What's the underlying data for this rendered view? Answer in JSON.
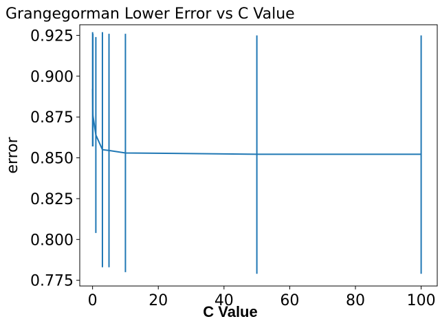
{
  "chart_data": {
    "type": "line",
    "title": "Grangegorman Lower Error vs C Value",
    "xlabel": "C  Value",
    "ylabel": "error",
    "xlim": [
      -3.9,
      104.9
    ],
    "ylim": [
      0.7715,
      0.9315
    ],
    "xticks": [
      0,
      20,
      40,
      60,
      80,
      100
    ],
    "xtick_labels": [
      "0",
      "20",
      "40",
      "60",
      "80",
      "100"
    ],
    "yticks": [
      0.775,
      0.8,
      0.825,
      0.85,
      0.875,
      0.9,
      0.925
    ],
    "ytick_labels": [
      "0.775",
      "0.800",
      "0.825",
      "0.850",
      "0.875",
      "0.900",
      "0.925"
    ],
    "grid": false,
    "color": "#1f77b4",
    "series": [
      {
        "x": [
          0.01,
          0.1,
          1,
          3,
          5,
          10,
          50,
          100
        ],
        "y": [
          0.892,
          0.876,
          0.864,
          0.855,
          0.8545,
          0.853,
          0.8522,
          0.8522
        ],
        "err_low": [
          0.857,
          0.857,
          0.804,
          0.783,
          0.783,
          0.78,
          0.779,
          0.779
        ],
        "err_high": [
          0.927,
          0.926,
          0.924,
          0.927,
          0.926,
          0.926,
          0.925,
          0.925
        ]
      }
    ]
  }
}
